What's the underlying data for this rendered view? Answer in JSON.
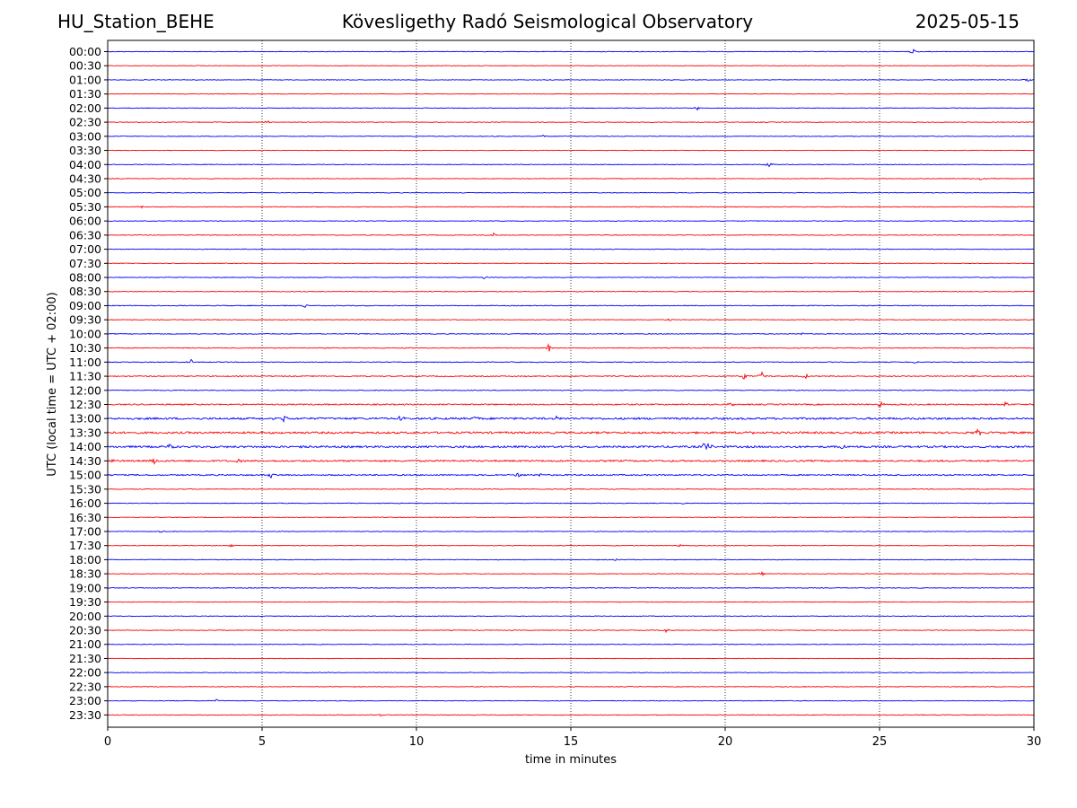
{
  "header": {
    "station": "HU_Station_BEHE",
    "observatory": "Kövesligethy Radó Seismological Observatory",
    "date": "2025-05-15"
  },
  "chart_data": {
    "type": "line",
    "title": "Kövesligethy Radó Seismological Observatory",
    "xlabel": "time in minutes",
    "ylabel": "UTC (local time = UTC + 02:00)",
    "xlim": [
      0,
      30
    ],
    "x_ticks": [
      0,
      5,
      10,
      15,
      20,
      25,
      30
    ],
    "grid": "vertical dotted at 5-minute intervals",
    "trace_colors": [
      "#0000ff",
      "#ff0000"
    ],
    "rows": [
      {
        "label": "00:00",
        "color": "#0000ff",
        "activity": 1,
        "events": [
          [
            26.1,
            3
          ]
        ]
      },
      {
        "label": "00:30",
        "color": "#ff0000",
        "activity": 0.8,
        "events": []
      },
      {
        "label": "01:00",
        "color": "#0000ff",
        "activity": 1,
        "events": [
          [
            29.8,
            3
          ]
        ]
      },
      {
        "label": "01:30",
        "color": "#ff0000",
        "activity": 0.8,
        "events": []
      },
      {
        "label": "02:00",
        "color": "#0000ff",
        "activity": 1,
        "events": [
          [
            19.1,
            2
          ]
        ]
      },
      {
        "label": "02:30",
        "color": "#ff0000",
        "activity": 1,
        "events": [
          [
            5.2,
            2
          ]
        ]
      },
      {
        "label": "03:00",
        "color": "#0000ff",
        "activity": 1,
        "events": [
          [
            14.1,
            2
          ]
        ]
      },
      {
        "label": "03:30",
        "color": "#ff0000",
        "activity": 0.8,
        "events": []
      },
      {
        "label": "04:00",
        "color": "#0000ff",
        "activity": 1,
        "events": [
          [
            21.4,
            3
          ]
        ]
      },
      {
        "label": "04:30",
        "color": "#ff0000",
        "activity": 1,
        "events": [
          [
            28.3,
            3
          ]
        ]
      },
      {
        "label": "05:00",
        "color": "#0000ff",
        "activity": 1,
        "events": []
      },
      {
        "label": "05:30",
        "color": "#ff0000",
        "activity": 1,
        "events": [
          [
            1.1,
            2
          ]
        ]
      },
      {
        "label": "06:00",
        "color": "#0000ff",
        "activity": 1,
        "events": []
      },
      {
        "label": "06:30",
        "color": "#ff0000",
        "activity": 1,
        "events": [
          [
            12.5,
            2
          ]
        ]
      },
      {
        "label": "07:00",
        "color": "#0000ff",
        "activity": 1,
        "events": []
      },
      {
        "label": "07:30",
        "color": "#ff0000",
        "activity": 0.8,
        "events": []
      },
      {
        "label": "08:00",
        "color": "#0000ff",
        "activity": 1,
        "events": [
          [
            12.2,
            2
          ]
        ]
      },
      {
        "label": "08:30",
        "color": "#ff0000",
        "activity": 1,
        "events": []
      },
      {
        "label": "09:00",
        "color": "#0000ff",
        "activity": 1.2,
        "events": [
          [
            6.4,
            3
          ]
        ]
      },
      {
        "label": "09:30",
        "color": "#ff0000",
        "activity": 1,
        "events": [
          [
            18.2,
            2
          ]
        ]
      },
      {
        "label": "10:00",
        "color": "#0000ff",
        "activity": 1.2,
        "events": [
          [
            22.5,
            2
          ]
        ]
      },
      {
        "label": "10:30",
        "color": "#ff0000",
        "activity": 1.2,
        "events": [
          [
            14.3,
            6
          ]
        ]
      },
      {
        "label": "11:00",
        "color": "#0000ff",
        "activity": 1.2,
        "events": [
          [
            2.7,
            3
          ],
          [
            26.1,
            3
          ]
        ]
      },
      {
        "label": "11:30",
        "color": "#ff0000",
        "activity": 1.6,
        "events": [
          [
            20.6,
            5
          ],
          [
            21.2,
            6
          ],
          [
            22.6,
            3
          ]
        ]
      },
      {
        "label": "12:00",
        "color": "#0000ff",
        "activity": 1.2,
        "events": []
      },
      {
        "label": "12:30",
        "color": "#ff0000",
        "activity": 2,
        "events": [
          [
            20.2,
            4
          ],
          [
            25,
            5
          ],
          [
            29.1,
            4
          ]
        ]
      },
      {
        "label": "13:00",
        "color": "#0000ff",
        "activity": 3,
        "events": [
          [
            5.7,
            4
          ],
          [
            9.5,
            4
          ],
          [
            11.9,
            4
          ],
          [
            14.5,
            3
          ]
        ]
      },
      {
        "label": "13:30",
        "color": "#ff0000",
        "activity": 3,
        "events": [
          [
            20.8,
            5
          ],
          [
            28.2,
            4
          ]
        ]
      },
      {
        "label": "14:00",
        "color": "#0000ff",
        "activity": 3,
        "events": [
          [
            2,
            4
          ],
          [
            6.3,
            4
          ],
          [
            19.4,
            12
          ],
          [
            23.8,
            4
          ]
        ]
      },
      {
        "label": "14:30",
        "color": "#ff0000",
        "activity": 2.5,
        "events": [
          [
            0.2,
            4
          ],
          [
            1.5,
            4
          ],
          [
            4.2,
            4
          ]
        ]
      },
      {
        "label": "15:00",
        "color": "#0000ff",
        "activity": 2,
        "events": [
          [
            5.3,
            3
          ],
          [
            13.3,
            3
          ],
          [
            14,
            3
          ]
        ]
      },
      {
        "label": "15:30",
        "color": "#ff0000",
        "activity": 1,
        "events": []
      },
      {
        "label": "16:00",
        "color": "#0000ff",
        "activity": 1,
        "events": [
          [
            18.6,
            2
          ]
        ]
      },
      {
        "label": "16:30",
        "color": "#ff0000",
        "activity": 1,
        "events": []
      },
      {
        "label": "17:00",
        "color": "#0000ff",
        "activity": 1,
        "events": [
          [
            1.7,
            2
          ]
        ]
      },
      {
        "label": "17:30",
        "color": "#ff0000",
        "activity": 1,
        "events": [
          [
            4,
            2
          ],
          [
            18.5,
            2
          ]
        ]
      },
      {
        "label": "18:00",
        "color": "#0000ff",
        "activity": 1,
        "events": [
          [
            16.5,
            2
          ]
        ]
      },
      {
        "label": "18:30",
        "color": "#ff0000",
        "activity": 1,
        "events": [
          [
            21.2,
            2
          ]
        ]
      },
      {
        "label": "19:00",
        "color": "#0000ff",
        "activity": 1,
        "events": []
      },
      {
        "label": "19:30",
        "color": "#ff0000",
        "activity": 0.8,
        "events": []
      },
      {
        "label": "20:00",
        "color": "#0000ff",
        "activity": 1,
        "events": []
      },
      {
        "label": "20:30",
        "color": "#ff0000",
        "activity": 1,
        "events": [
          [
            18.1,
            3
          ]
        ]
      },
      {
        "label": "21:00",
        "color": "#0000ff",
        "activity": 1,
        "events": []
      },
      {
        "label": "21:30",
        "color": "#ff0000",
        "activity": 0.8,
        "events": []
      },
      {
        "label": "22:00",
        "color": "#0000ff",
        "activity": 1,
        "events": []
      },
      {
        "label": "22:30",
        "color": "#ff0000",
        "activity": 1,
        "events": []
      },
      {
        "label": "23:00",
        "color": "#0000ff",
        "activity": 1,
        "events": [
          [
            3.5,
            2
          ]
        ]
      },
      {
        "label": "23:30",
        "color": "#ff0000",
        "activity": 1,
        "events": [
          [
            8.8,
            2
          ]
        ]
      }
    ]
  }
}
